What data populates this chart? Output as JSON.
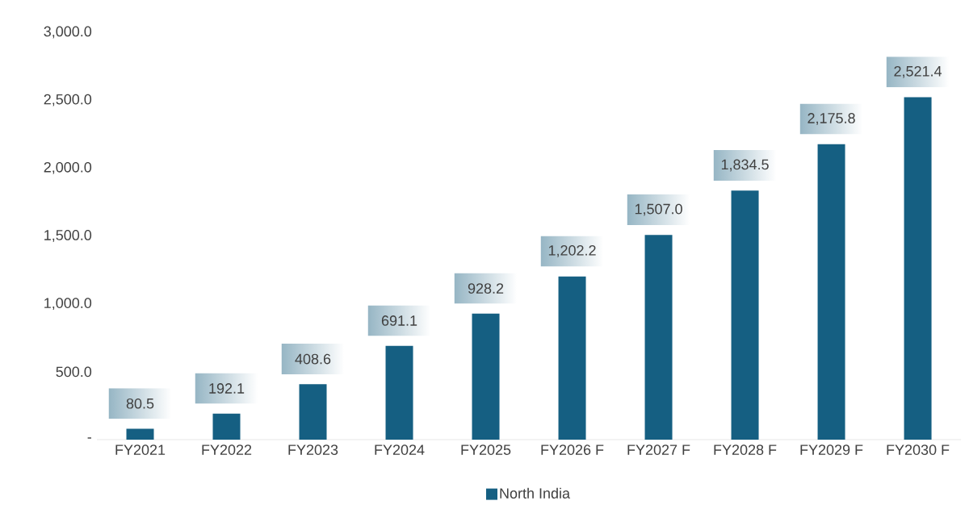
{
  "chart_data": {
    "type": "bar",
    "categories": [
      "FY2021",
      "FY2022",
      "FY2023",
      "FY2024",
      "FY2025",
      "FY2026 F",
      "FY2027 F",
      "FY2028 F",
      "FY2029 F",
      "FY2030 F"
    ],
    "series": [
      {
        "name": "North India",
        "color": "#155f82",
        "values": [
          80.5,
          192.1,
          408.6,
          691.1,
          928.2,
          1202.2,
          1507.0,
          1834.5,
          2175.8,
          2521.4
        ],
        "value_labels": [
          "80.5",
          "192.1",
          "408.6",
          "691.1",
          "928.2",
          "1,202.2",
          "1,507.0",
          "1,834.5",
          "2,175.8",
          "2,521.4"
        ]
      }
    ],
    "ylim": [
      0,
      3000
    ],
    "yticks": [
      {
        "value": 0,
        "label": "-"
      },
      {
        "value": 500,
        "label": "500.0"
      },
      {
        "value": 1000,
        "label": "1,000.0"
      },
      {
        "value": 1500,
        "label": "1,500.0"
      },
      {
        "value": 2000,
        "label": "2,000.0"
      },
      {
        "value": 2500,
        "label": "2,500.0"
      },
      {
        "value": 3000,
        "label": "3,000.0"
      }
    ],
    "legend": "bottom"
  }
}
